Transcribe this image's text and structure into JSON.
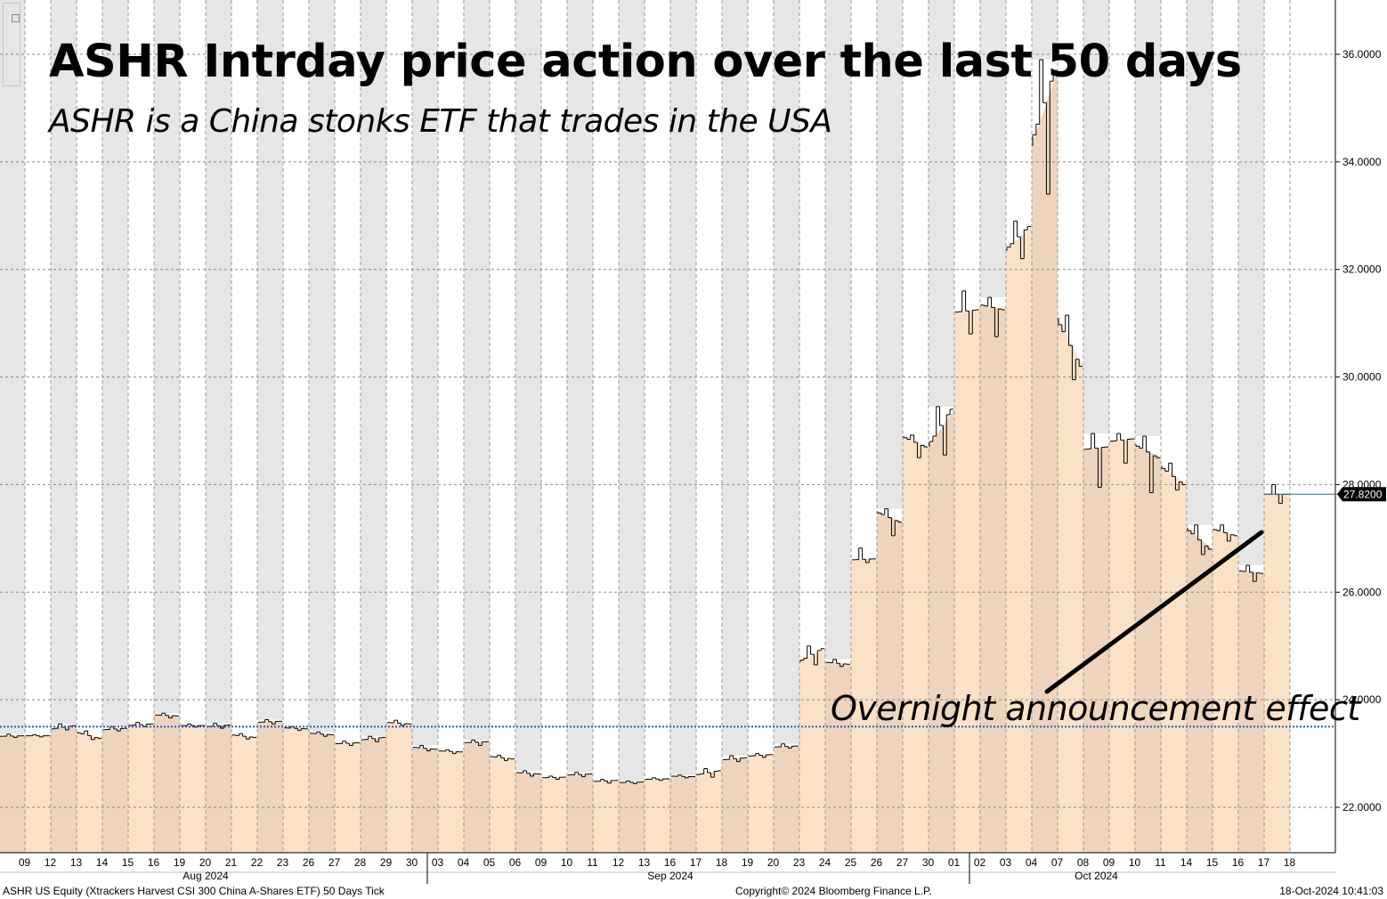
{
  "title": "ASHR Intrday price action over the last 50 days",
  "subtitle": "ASHR is a China stonks ETF that trades in the USA",
  "annotation": "Overnight announcement effect",
  "footer": {
    "left": "ASHR US Equity (Xtrackers Harvest CSI 300 China A-Shares ETF) 50 Days  Tick",
    "center": "Copyright© 2024 Bloomberg Finance L.P.",
    "right": "18-Oct-2024 10:41:03"
  },
  "colors": {
    "area_light": "#fbe1c6",
    "area_dark": "#eed4bd",
    "band_gray": "#e6e6e6",
    "reference_line": "#1f5fbf",
    "last_price_line": "#1f6fa0",
    "price_tag_bg": "#000000"
  },
  "chart_data": {
    "type": "area",
    "ylim": [
      21,
      37
    ],
    "yticks": [
      "22.0000",
      "24.0000",
      "26.0000",
      "28.0000",
      "30.0000",
      "32.0000",
      "34.0000",
      "36.0000"
    ],
    "ytick_values": [
      22,
      24,
      26,
      28,
      30,
      32,
      34,
      36
    ],
    "last_price": 27.82,
    "last_price_label": "27.8200",
    "reference_level": 23.5,
    "month_labels": [
      {
        "label": "Aug 2024",
        "index": 7.5
      },
      {
        "label": "Sep 2024",
        "index": 25.5
      },
      {
        "label": "Oct 2024",
        "index": 42
      }
    ],
    "grid": true,
    "days": [
      {
        "label": "09",
        "open": 23.32,
        "close": 23.33,
        "high": 23.36,
        "low": 23.3
      },
      {
        "label": "12",
        "open": 23.33,
        "close": 23.33,
        "high": 23.35,
        "low": 23.31
      },
      {
        "label": "13",
        "open": 23.45,
        "close": 23.52,
        "high": 23.55,
        "low": 23.44
      },
      {
        "label": "14",
        "open": 23.4,
        "close": 23.28,
        "high": 23.42,
        "low": 23.26
      },
      {
        "label": "15",
        "open": 23.44,
        "close": 23.47,
        "high": 23.5,
        "low": 23.42
      },
      {
        "label": "16",
        "open": 23.52,
        "close": 23.55,
        "high": 23.58,
        "low": 23.5
      },
      {
        "label": "19",
        "open": 23.72,
        "close": 23.7,
        "high": 23.75,
        "low": 23.66
      },
      {
        "label": "20",
        "open": 23.52,
        "close": 23.52,
        "high": 23.55,
        "low": 23.49
      },
      {
        "label": "21",
        "open": 23.5,
        "close": 23.53,
        "high": 23.56,
        "low": 23.47
      },
      {
        "label": "22",
        "open": 23.35,
        "close": 23.3,
        "high": 23.37,
        "low": 23.27
      },
      {
        "label": "23",
        "open": 23.58,
        "close": 23.6,
        "high": 23.63,
        "low": 23.55
      },
      {
        "label": "26",
        "open": 23.48,
        "close": 23.46,
        "high": 23.5,
        "low": 23.43
      },
      {
        "label": "27",
        "open": 23.38,
        "close": 23.35,
        "high": 23.4,
        "low": 23.32
      },
      {
        "label": "28",
        "open": 23.18,
        "close": 23.2,
        "high": 23.23,
        "low": 23.15
      },
      {
        "label": "29",
        "open": 23.25,
        "close": 23.3,
        "high": 23.32,
        "low": 23.22
      },
      {
        "label": "30",
        "open": 23.58,
        "close": 23.55,
        "high": 23.62,
        "low": 23.52
      },
      {
        "label": "03",
        "open": 23.12,
        "close": 23.08,
        "high": 23.15,
        "low": 23.05
      },
      {
        "label": "04",
        "open": 23.05,
        "close": 23.03,
        "high": 23.07,
        "low": 23.0
      },
      {
        "label": "05",
        "open": 23.2,
        "close": 23.22,
        "high": 23.25,
        "low": 23.15
      },
      {
        "label": "06",
        "open": 22.95,
        "close": 22.9,
        "high": 22.97,
        "low": 22.87
      },
      {
        "label": "09",
        "open": 22.65,
        "close": 22.62,
        "high": 22.68,
        "low": 22.58
      },
      {
        "label": "10",
        "open": 22.55,
        "close": 22.56,
        "high": 22.58,
        "low": 22.52
      },
      {
        "label": "11",
        "open": 22.6,
        "close": 22.62,
        "high": 22.65,
        "low": 22.57
      },
      {
        "label": "12",
        "open": 22.48,
        "close": 22.5,
        "high": 22.52,
        "low": 22.45
      },
      {
        "label": "13",
        "open": 22.46,
        "close": 22.47,
        "high": 22.49,
        "low": 22.44
      },
      {
        "label": "16",
        "open": 22.52,
        "close": 22.53,
        "high": 22.55,
        "low": 22.5
      },
      {
        "label": "17",
        "open": 22.58,
        "close": 22.57,
        "high": 22.6,
        "low": 22.55
      },
      {
        "label": "18",
        "open": 22.6,
        "close": 22.68,
        "high": 22.72,
        "low": 22.56
      },
      {
        "label": "19",
        "open": 22.88,
        "close": 22.92,
        "high": 22.96,
        "low": 22.85
      },
      {
        "label": "20",
        "open": 22.95,
        "close": 22.98,
        "high": 23.0,
        "low": 22.93
      },
      {
        "label": "23",
        "open": 23.12,
        "close": 23.14,
        "high": 23.18,
        "low": 23.1
      },
      {
        "label": "24",
        "open": 24.7,
        "close": 24.95,
        "high": 25.0,
        "low": 24.65
      },
      {
        "label": "25",
        "open": 24.7,
        "close": 24.66,
        "high": 24.75,
        "low": 24.62
      },
      {
        "label": "26",
        "open": 26.6,
        "close": 26.62,
        "high": 26.82,
        "low": 26.55
      },
      {
        "label": "27",
        "open": 27.5,
        "close": 27.3,
        "high": 27.55,
        "low": 27.05
      },
      {
        "label": "30",
        "open": 28.9,
        "close": 28.7,
        "high": 28.92,
        "low": 28.5
      },
      {
        "label": "01",
        "open": 28.7,
        "close": 29.4,
        "high": 29.45,
        "low": 28.55
      },
      {
        "label": "02",
        "open": 31.2,
        "close": 31.25,
        "high": 31.6,
        "low": 30.8
      },
      {
        "label": "03",
        "open": 31.35,
        "close": 31.25,
        "high": 31.48,
        "low": 30.75
      },
      {
        "label": "04",
        "open": 32.35,
        "close": 32.8,
        "high": 32.9,
        "low": 32.2
      },
      {
        "label": "07",
        "open": 34.3,
        "close": 35.7,
        "high": 35.9,
        "low": 33.4
      },
      {
        "label": "08",
        "open": 31.1,
        "close": 30.2,
        "high": 31.15,
        "low": 29.95
      },
      {
        "label": "09",
        "open": 28.65,
        "close": 28.7,
        "high": 28.95,
        "low": 27.95
      },
      {
        "label": "10",
        "open": 28.8,
        "close": 28.85,
        "high": 28.95,
        "low": 28.4
      },
      {
        "label": "11",
        "open": 28.75,
        "close": 28.5,
        "high": 28.9,
        "low": 27.85
      },
      {
        "label": "14",
        "open": 28.35,
        "close": 28.0,
        "high": 28.4,
        "low": 27.9
      },
      {
        "label": "15",
        "open": 27.2,
        "close": 26.8,
        "high": 27.25,
        "low": 26.7
      },
      {
        "label": "16",
        "open": 27.18,
        "close": 27.05,
        "high": 27.25,
        "low": 26.95
      },
      {
        "label": "17",
        "open": 26.4,
        "close": 26.35,
        "high": 26.5,
        "low": 26.2
      },
      {
        "label": "18",
        "open": 27.82,
        "close": 27.82,
        "high": 28.0,
        "low": 27.65
      }
    ]
  }
}
